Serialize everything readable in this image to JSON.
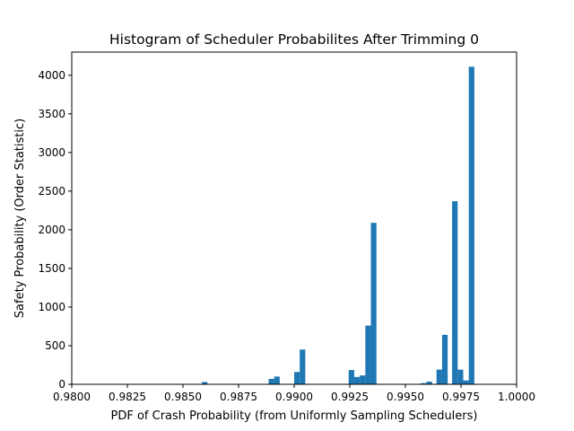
{
  "chart_data": {
    "type": "bar",
    "title": "Histogram of Scheduler Probabilites After Trimming 0",
    "xlabel": "PDF of Crash Probability (from Uniformly Sampling Schedulers)",
    "ylabel": "Safety Probability (Order Statistic)",
    "xlim": [
      0.98,
      1.0
    ],
    "ylim": [
      0,
      4300
    ],
    "xticks": [
      "0.9800",
      "0.9825",
      "0.9850",
      "0.9875",
      "0.9900",
      "0.9925",
      "0.9950",
      "0.9975",
      "1.0000"
    ],
    "yticks": [
      "0",
      "500",
      "1000",
      "1500",
      "2000",
      "2500",
      "3000",
      "3500",
      "4000"
    ],
    "bar_color": "#1f77b4",
    "grid": false,
    "bin_width": 0.00025,
    "bins": [
      {
        "x": 0.98585,
        "value": 30
      },
      {
        "x": 0.98885,
        "value": 70
      },
      {
        "x": 0.9891,
        "value": 100
      },
      {
        "x": 0.99,
        "value": 160
      },
      {
        "x": 0.99025,
        "value": 450
      },
      {
        "x": 0.99245,
        "value": 185
      },
      {
        "x": 0.9927,
        "value": 95
      },
      {
        "x": 0.99295,
        "value": 115
      },
      {
        "x": 0.9932,
        "value": 760
      },
      {
        "x": 0.99345,
        "value": 2090
      },
      {
        "x": 0.9957,
        "value": 15
      },
      {
        "x": 0.99595,
        "value": 35
      },
      {
        "x": 0.9964,
        "value": 190
      },
      {
        "x": 0.99665,
        "value": 640
      },
      {
        "x": 0.9971,
        "value": 2370
      },
      {
        "x": 0.99735,
        "value": 190
      },
      {
        "x": 0.9976,
        "value": 50
      },
      {
        "x": 0.99785,
        "value": 4110
      }
    ]
  }
}
